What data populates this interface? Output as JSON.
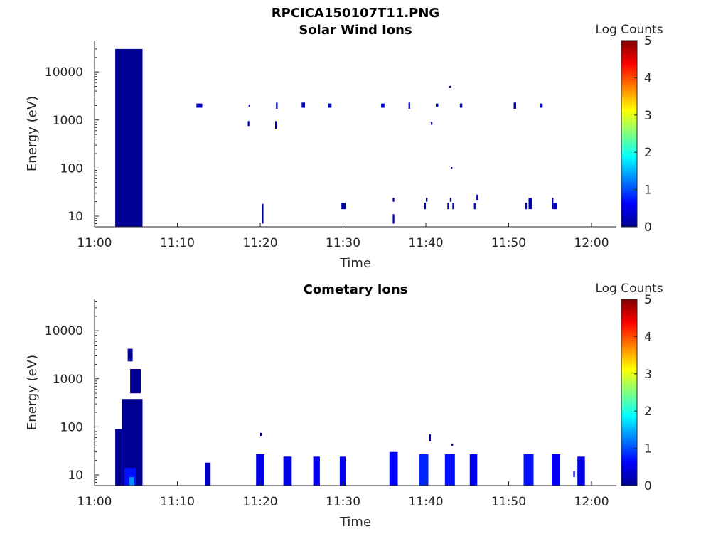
{
  "figure": {
    "title": "RPCICA150107T11.PNG"
  },
  "colorbar": {
    "label": "Log Counts",
    "ticks": [
      "0",
      "1",
      "2",
      "3",
      "4",
      "5"
    ],
    "range": [
      0,
      5
    ],
    "colormap": "jet",
    "colors": [
      "#00008f",
      "#0000ff",
      "#00ffff",
      "#ffff00",
      "#ff0000",
      "#800000"
    ]
  },
  "chart_data": [
    {
      "type": "heatmap",
      "title": "Solar Wind Ions",
      "xlabel": "Time",
      "ylabel": "Energy (eV)",
      "y_scale": "log",
      "ylim": [
        6,
        45000
      ],
      "xlim": [
        "11:00",
        "12:03"
      ],
      "x_ticks": [
        "11:00",
        "11:10",
        "11:20",
        "11:30",
        "11:40",
        "11:50",
        "12:00"
      ],
      "y_ticks": [
        "10",
        "100",
        "1000",
        "10000"
      ],
      "colorbar_label": "Log Counts",
      "blocks": [
        {
          "t0": "11:02.5",
          "t1": "11:05.8",
          "e0": 6,
          "e1": 30000,
          "value": 0.1
        },
        {
          "t0": "11:12.3",
          "t1": "11:13.0",
          "e0": 1800,
          "e1": 2200,
          "value": 0.3
        },
        {
          "t0": "11:18.6",
          "t1": "11:18.8",
          "e0": 1900,
          "e1": 2100,
          "value": 0.3
        },
        {
          "t0": "11:21.9",
          "t1": "11:22.1",
          "e0": 1700,
          "e1": 2300,
          "value": 0.3
        },
        {
          "t0": "11:25.0",
          "t1": "11:25.4",
          "e0": 1800,
          "e1": 2300,
          "value": 0.3
        },
        {
          "t0": "11:28.2",
          "t1": "11:28.6",
          "e0": 1800,
          "e1": 2200,
          "value": 0.3
        },
        {
          "t0": "11:34.6",
          "t1": "11:35.0",
          "e0": 1800,
          "e1": 2200,
          "value": 0.3
        },
        {
          "t0": "11:37.9",
          "t1": "11:38.1",
          "e0": 1700,
          "e1": 2300,
          "value": 0.3
        },
        {
          "t0": "11:41.2",
          "t1": "11:41.5",
          "e0": 1900,
          "e1": 2200,
          "value": 0.3
        },
        {
          "t0": "11:44.1",
          "t1": "11:44.4",
          "e0": 1800,
          "e1": 2200,
          "value": 0.3
        },
        {
          "t0": "11:50.6",
          "t1": "11:50.9",
          "e0": 1700,
          "e1": 2300,
          "value": 0.3
        },
        {
          "t0": "11:53.8",
          "t1": "11:54.1",
          "e0": 1800,
          "e1": 2200,
          "value": 0.3
        },
        {
          "t0": "11:18.5",
          "t1": "11:18.7",
          "e0": 750,
          "e1": 950,
          "value": 0.2
        },
        {
          "t0": "11:21.8",
          "t1": "11:22.0",
          "e0": 650,
          "e1": 950,
          "value": 0.2
        },
        {
          "t0": "11:40.6",
          "t1": "11:40.8",
          "e0": 800,
          "e1": 900,
          "value": 0.2
        },
        {
          "t0": "11:42.8",
          "t1": "11:43.0",
          "e0": 4600,
          "e1": 5100,
          "value": 0.2
        },
        {
          "t0": "11:43.0",
          "t1": "11:43.2",
          "e0": 95,
          "e1": 105,
          "value": 0.2
        },
        {
          "t0": "11:20.2",
          "t1": "11:20.4",
          "e0": 7,
          "e1": 18,
          "value": 0.2
        },
        {
          "t0": "11:29.8",
          "t1": "11:30.3",
          "e0": 14,
          "e1": 19,
          "value": 0.2
        },
        {
          "t0": "11:36.0",
          "t1": "11:36.2",
          "e0": 7,
          "e1": 11,
          "value": 0.2
        },
        {
          "t0": "11:36.0",
          "t1": "11:36.2",
          "e0": 20,
          "e1": 24,
          "value": 0.2
        },
        {
          "t0": "11:39.8",
          "t1": "11:40.0",
          "e0": 14,
          "e1": 19,
          "value": 0.2
        },
        {
          "t0": "11:40.0",
          "t1": "11:40.2",
          "e0": 20,
          "e1": 24,
          "value": 0.2
        },
        {
          "t0": "11:42.6",
          "t1": "11:42.8",
          "e0": 14,
          "e1": 19,
          "value": 0.2
        },
        {
          "t0": "11:42.9",
          "t1": "11:43.1",
          "e0": 20,
          "e1": 24,
          "value": 0.2
        },
        {
          "t0": "11:43.2",
          "t1": "11:43.4",
          "e0": 14,
          "e1": 19,
          "value": 0.2
        },
        {
          "t0": "11:45.8",
          "t1": "11:46.0",
          "e0": 14,
          "e1": 19,
          "value": 0.2
        },
        {
          "t0": "11:46.1",
          "t1": "11:46.3",
          "e0": 21,
          "e1": 28,
          "value": 0.2
        },
        {
          "t0": "11:52.0",
          "t1": "11:52.2",
          "e0": 14,
          "e1": 19,
          "value": 0.2
        },
        {
          "t0": "11:52.4",
          "t1": "11:52.8",
          "e0": 14,
          "e1": 24,
          "value": 0.3
        },
        {
          "t0": "11:55.2",
          "t1": "11:55.4",
          "e0": 14,
          "e1": 24,
          "value": 0.2
        },
        {
          "t0": "11:55.4",
          "t1": "11:55.8",
          "e0": 14,
          "e1": 19,
          "value": 0.3
        }
      ]
    },
    {
      "type": "heatmap",
      "title": "Cometary Ions",
      "xlabel": "Time",
      "ylabel": "Energy (eV)",
      "y_scale": "log",
      "ylim": [
        6,
        45000
      ],
      "xlim": [
        "11:00",
        "12:03"
      ],
      "x_ticks": [
        "11:00",
        "11:10",
        "11:20",
        "11:30",
        "11:40",
        "11:50",
        "12:00"
      ],
      "y_ticks": [
        "10",
        "100",
        "1000",
        "10000"
      ],
      "colorbar_label": "Log Counts",
      "blocks": [
        {
          "t0": "11:03.3",
          "t1": "11:05.8",
          "e0": 6,
          "e1": 380,
          "value": 0.1
        },
        {
          "t0": "11:02.5",
          "t1": "11:03.3",
          "e0": 6,
          "e1": 90,
          "value": 0.1
        },
        {
          "t0": "11:04.3",
          "t1": "11:05.6",
          "e0": 500,
          "e1": 1600,
          "value": 0.1
        },
        {
          "t0": "11:04.0",
          "t1": "11:04.6",
          "e0": 2300,
          "e1": 4200,
          "value": 0.1
        },
        {
          "t0": "11:03.6",
          "t1": "11:05.0",
          "e0": 6,
          "e1": 14,
          "value": 0.7
        },
        {
          "t0": "11:04.2",
          "t1": "11:04.8",
          "e0": 6,
          "e1": 9,
          "value": 1.3
        },
        {
          "t0": "11:13.3",
          "t1": "11:14.0",
          "e0": 6,
          "e1": 18,
          "value": 0.3
        },
        {
          "t0": "11:19.5",
          "t1": "11:20.5",
          "e0": 6,
          "e1": 27,
          "value": 0.5
        },
        {
          "t0": "11:20.0",
          "t1": "11:20.2",
          "e0": 65,
          "e1": 75,
          "value": 0.2
        },
        {
          "t0": "11:22.8",
          "t1": "11:23.8",
          "e0": 6,
          "e1": 24,
          "value": 0.5
        },
        {
          "t0": "11:26.4",
          "t1": "11:27.2",
          "e0": 6,
          "e1": 24,
          "value": 0.6
        },
        {
          "t0": "11:29.6",
          "t1": "11:30.3",
          "e0": 6,
          "e1": 24,
          "value": 0.6
        },
        {
          "t0": "11:35.6",
          "t1": "11:36.6",
          "e0": 6,
          "e1": 30,
          "value": 0.6
        },
        {
          "t0": "11:39.2",
          "t1": "11:40.3",
          "e0": 6,
          "e1": 27,
          "value": 0.8
        },
        {
          "t0": "11:40.4",
          "t1": "11:40.6",
          "e0": 50,
          "e1": 70,
          "value": 0.2
        },
        {
          "t0": "11:42.3",
          "t1": "11:43.5",
          "e0": 6,
          "e1": 27,
          "value": 0.7
        },
        {
          "t0": "11:43.1",
          "t1": "11:43.3",
          "e0": 40,
          "e1": 45,
          "value": 0.2
        },
        {
          "t0": "11:45.3",
          "t1": "11:46.2",
          "e0": 6,
          "e1": 27,
          "value": 0.6
        },
        {
          "t0": "11:51.8",
          "t1": "11:53.0",
          "e0": 6,
          "e1": 27,
          "value": 0.7
        },
        {
          "t0": "11:55.2",
          "t1": "11:56.2",
          "e0": 6,
          "e1": 27,
          "value": 0.6
        },
        {
          "t0": "11:58.3",
          "t1": "11:59.2",
          "e0": 6,
          "e1": 24,
          "value": 0.5
        },
        {
          "t0": "11:57.8",
          "t1": "11:58.0",
          "e0": 9,
          "e1": 12,
          "value": 0.5
        }
      ]
    }
  ]
}
